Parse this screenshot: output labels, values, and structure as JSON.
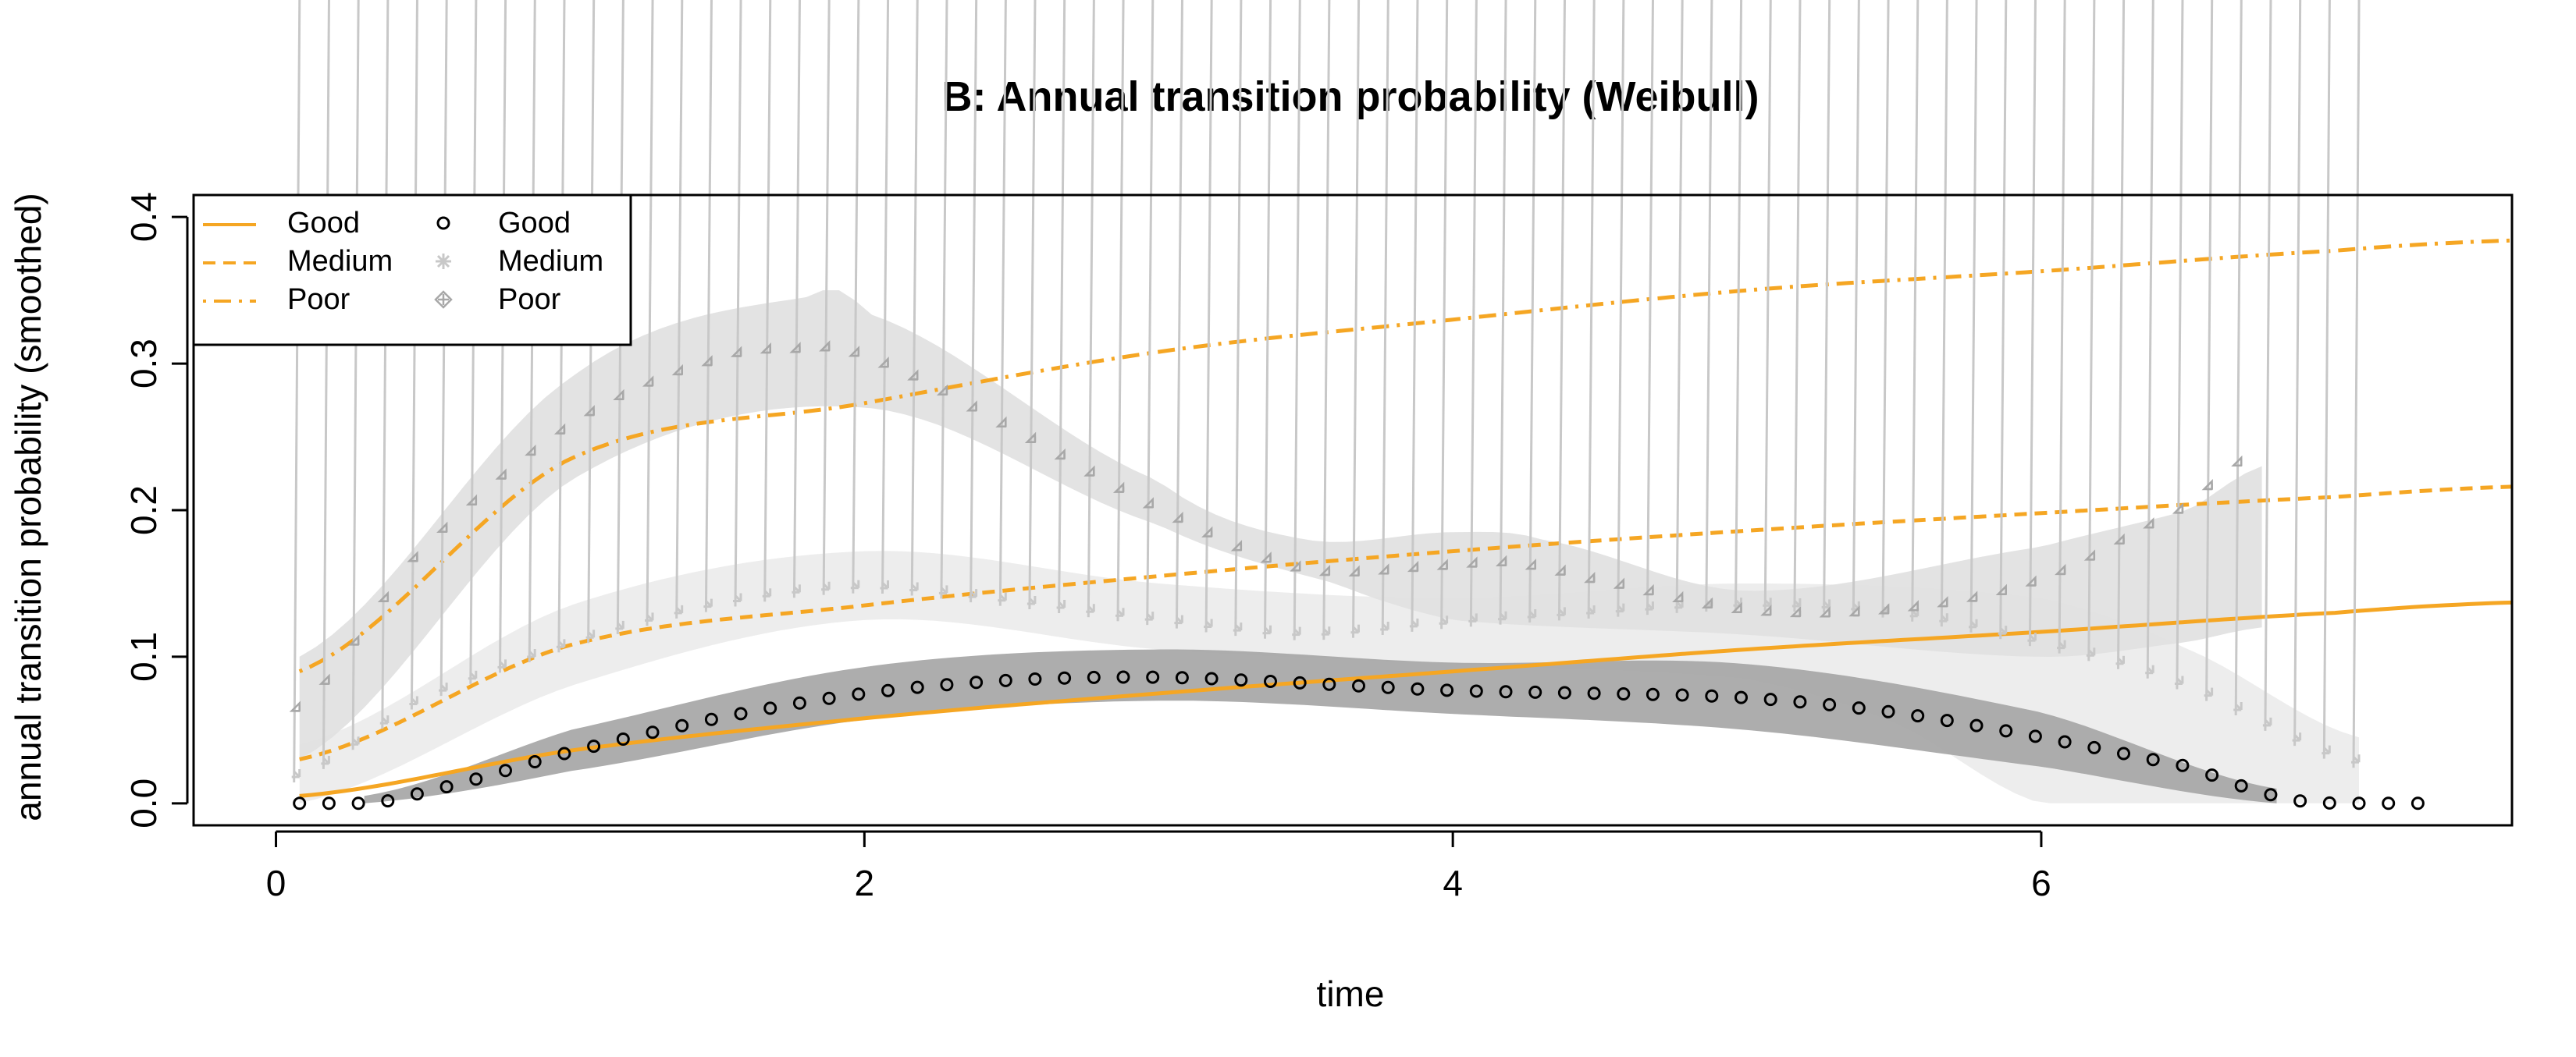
{
  "chart_data": {
    "type": "line",
    "title": "B: Annual transition probability (Weibull)",
    "xlabel": "time",
    "ylabel": "annual transition probability (smoothed)",
    "xlim": [
      -0.28,
      7.6
    ],
    "ylim": [
      -0.015,
      0.415
    ],
    "x_ticks": [
      0,
      2,
      4,
      6
    ],
    "x_tick_labels": [
      "0",
      "2",
      "4",
      "6"
    ],
    "y_ticks": [
      0.0,
      0.1,
      0.2,
      0.3,
      0.4
    ],
    "y_tick_labels": [
      "0.0",
      "0.1",
      "0.2",
      "0.3",
      "0.4"
    ],
    "grid": false,
    "legend_position": "top-left",
    "legend": {
      "lines": [
        {
          "label": "Good",
          "style": "solid"
        },
        {
          "label": "Medium",
          "style": "dashed"
        },
        {
          "label": "Poor",
          "style": "dotdash"
        }
      ],
      "points": [
        {
          "label": "Good",
          "marker": "circle"
        },
        {
          "label": "Medium",
          "marker": "asterisk"
        },
        {
          "label": "Poor",
          "marker": "crossed-diamond"
        }
      ]
    },
    "colors": {
      "weibull_line": "#F5A623",
      "good_points": "#000000",
      "medium_points": "#C8C8C8",
      "poor_points": "#A8A8A8",
      "good_band": "#A9A9A9",
      "medium_band": "#EBEBEB",
      "poor_band": "#E0E0E0"
    },
    "weibull_series": [
      {
        "name": "Good",
        "style": "solid",
        "shape": 1.3,
        "x_start": 0.08,
        "x_end": 7.6,
        "x": [
          0.08,
          1,
          2,
          3,
          4,
          5,
          6,
          7,
          7.6
        ],
        "y": [
          0.005,
          0.036,
          0.058,
          0.075,
          0.09,
          0.105,
          0.117,
          0.13,
          0.137
        ]
      },
      {
        "name": "Medium",
        "style": "dashed",
        "shape": 1.4,
        "x_start": 0.08,
        "x_end": 7.6,
        "x": [
          0.08,
          1,
          2,
          3,
          4,
          5,
          6,
          7,
          7.6
        ],
        "y": [
          0.03,
          0.108,
          0.135,
          0.155,
          0.172,
          0.186,
          0.198,
          0.209,
          0.216
        ]
      },
      {
        "name": "Poor",
        "style": "dotdash",
        "shape": 1.6,
        "x_start": 0.08,
        "x_end": 7.6,
        "x": [
          0.08,
          1,
          2,
          3,
          4,
          5,
          6,
          7,
          7.6
        ],
        "y": [
          0.09,
          0.235,
          0.273,
          0.308,
          0.33,
          0.35,
          0.363,
          0.377,
          0.384
        ]
      }
    ],
    "empirical_series": [
      {
        "name": "Good",
        "marker": "circle",
        "x_start": 0.08,
        "x_end": 7.28,
        "x": [
          0.08,
          0.3,
          0.5,
          1.0,
          1.5,
          2.0,
          2.5,
          3.0,
          3.5,
          4.0,
          4.5,
          5.0,
          5.5,
          6.0,
          6.5,
          6.8,
          7.0,
          7.28
        ],
        "y": [
          0.0,
          0.0,
          0.008,
          0.035,
          0.058,
          0.075,
          0.084,
          0.086,
          0.082,
          0.077,
          0.075,
          0.072,
          0.062,
          0.045,
          0.025,
          0.005,
          0.0,
          0.0
        ],
        "band_x_start": 0.3,
        "band_x_end": 6.8,
        "band_lower_x": [
          0.3,
          1.0,
          2.0,
          3.0,
          4.0,
          5.0,
          6.0,
          6.8
        ],
        "band_lower": [
          0.0,
          0.022,
          0.057,
          0.07,
          0.061,
          0.05,
          0.025,
          0.0
        ],
        "band_upper_x": [
          0.3,
          1.0,
          2.0,
          3.0,
          4.0,
          5.0,
          6.0,
          6.8
        ],
        "band_upper": [
          0.005,
          0.05,
          0.093,
          0.105,
          0.096,
          0.095,
          0.062,
          0.01
        ]
      },
      {
        "name": "Medium",
        "marker": "asterisk",
        "x_start": 0.08,
        "x_end": 7.08,
        "x": [
          0.08,
          0.5,
          1.0,
          1.5,
          2.0,
          2.5,
          3.0,
          3.5,
          4.0,
          4.5,
          5.0,
          5.5,
          6.0,
          6.5,
          7.08
        ],
        "y": [
          0.018,
          0.07,
          0.108,
          0.135,
          0.147,
          0.138,
          0.125,
          0.115,
          0.123,
          0.13,
          0.135,
          0.13,
          0.11,
          0.08,
          0.028
        ],
        "band_x_start": 0.08,
        "band_x_end": 7.08,
        "band_lower_x": [
          0.08,
          1.0,
          2.0,
          3.0,
          4.0,
          5.0,
          5.5,
          6.0,
          6.5,
          7.08
        ],
        "band_lower": [
          0.0,
          0.08,
          0.125,
          0.105,
          0.095,
          0.085,
          0.055,
          0.0,
          0.0,
          0.0
        ],
        "band_upper_x": [
          0.08,
          1.0,
          2.0,
          3.0,
          4.0,
          5.0,
          6.0,
          6.5,
          7.08
        ],
        "band_upper": [
          0.04,
          0.135,
          0.172,
          0.15,
          0.14,
          0.15,
          0.14,
          0.105,
          0.045
        ]
      },
      {
        "name": "Poor",
        "marker": "crossed-diamond",
        "x_start": 0.08,
        "x_end": 6.75,
        "x": [
          0.08,
          0.5,
          1.0,
          1.5,
          1.8,
          2.0,
          2.5,
          3.0,
          3.5,
          4.0,
          4.2,
          4.5,
          5.0,
          5.5,
          6.0,
          6.5,
          6.75
        ],
        "y": [
          0.063,
          0.17,
          0.255,
          0.3,
          0.308,
          0.303,
          0.255,
          0.2,
          0.158,
          0.16,
          0.162,
          0.15,
          0.13,
          0.13,
          0.15,
          0.2,
          0.238
        ],
        "band_x_start": 0.08,
        "band_x_end": 6.75,
        "band_lower_x": [
          0.08,
          1.0,
          2.0,
          3.0,
          3.6,
          4.0,
          5.0,
          6.0,
          6.5,
          6.75
        ],
        "band_lower": [
          0.03,
          0.22,
          0.27,
          0.19,
          0.15,
          0.125,
          0.115,
          0.1,
          0.11,
          0.12
        ],
        "band_upper_x": [
          0.08,
          1.0,
          1.8,
          2.0,
          3.0,
          3.5,
          4.0,
          4.3,
          5.0,
          6.0,
          6.5,
          6.75
        ],
        "band_upper": [
          0.1,
          0.29,
          0.345,
          0.335,
          0.22,
          0.18,
          0.185,
          0.18,
          0.145,
          0.175,
          0.2,
          0.23
        ]
      }
    ]
  }
}
